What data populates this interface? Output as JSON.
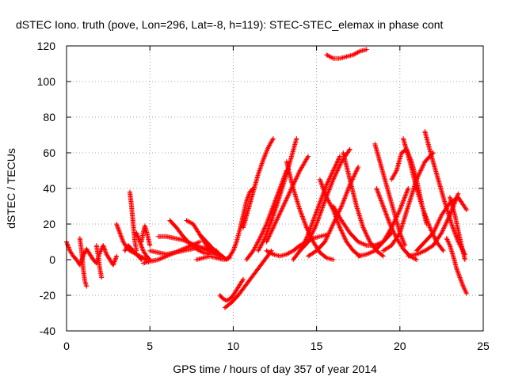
{
  "chart_data": {
    "type": "scatter",
    "title": "dSTEC Iono. truth (pove, Lon=296, Lat=-8, h=119): STEC-STEC_elemax in phase cont",
    "xlabel": "GPS time / hours of day 357 of year 2014",
    "ylabel": "dSTEC  / TECUs",
    "xlim": [
      0,
      25
    ],
    "ylim": [
      -40,
      120
    ],
    "xticks": [
      0,
      5,
      10,
      15,
      20,
      25
    ],
    "yticks": [
      -40,
      -20,
      0,
      20,
      40,
      60,
      80,
      100,
      120
    ],
    "grid": true,
    "marker": "+",
    "color": "#ff0000",
    "series": [
      {
        "x": [
          0.0,
          0.2,
          0.4,
          0.6,
          0.8,
          1.0,
          1.2,
          1.4,
          1.6,
          1.8,
          2.0,
          2.2,
          2.4,
          2.6,
          2.8,
          3.0
        ],
        "y": [
          10,
          5,
          2,
          0,
          -3,
          2,
          6,
          3,
          0,
          -2,
          4,
          8,
          3,
          0,
          -3,
          2
        ]
      },
      {
        "x": [
          0.8,
          0.9,
          1.0,
          1.1,
          1.2
        ],
        "y": [
          12,
          5,
          -5,
          -12,
          -15
        ]
      },
      {
        "x": [
          1.8,
          1.9,
          2.0,
          2.1
        ],
        "y": [
          8,
          2,
          -5,
          -10
        ]
      },
      {
        "x": [
          3.0,
          3.2,
          3.4,
          3.6,
          3.8,
          4.0,
          4.2,
          4.4,
          4.6,
          4.8
        ],
        "y": [
          20,
          15,
          10,
          7,
          5,
          4,
          3,
          2,
          1,
          0
        ]
      },
      {
        "x": [
          3.5,
          3.7,
          3.9,
          4.1,
          4.3,
          4.5
        ],
        "y": [
          5,
          8,
          6,
          4,
          2,
          0
        ]
      },
      {
        "x": [
          3.8,
          3.9,
          4.0,
          4.1,
          4.2
        ],
        "y": [
          38,
          30,
          20,
          10,
          5
        ]
      },
      {
        "x": [
          4.2,
          4.4,
          4.6,
          4.8,
          5.0
        ],
        "y": [
          15,
          10,
          5,
          2,
          0
        ]
      },
      {
        "x": [
          4.5,
          4.6,
          4.7,
          4.8,
          4.9,
          5.0
        ],
        "y": [
          10,
          15,
          19,
          16,
          12,
          8
        ]
      },
      {
        "x": [
          5.0,
          5.5,
          6.0,
          6.5,
          7.0,
          7.5,
          8.0,
          8.5,
          9.0
        ],
        "y": [
          5,
          4,
          3,
          4,
          5,
          6,
          7,
          6,
          5
        ]
      },
      {
        "x": [
          5.5,
          6.0,
          6.5,
          7.0,
          7.5,
          8.0,
          8.5,
          9.0
        ],
        "y": [
          13,
          13,
          12,
          11,
          9,
          7,
          5,
          3
        ]
      },
      {
        "x": [
          6.2,
          6.6,
          7.0,
          7.4,
          7.8,
          8.2,
          8.6
        ],
        "y": [
          22,
          18,
          13,
          9,
          6,
          4,
          3
        ]
      },
      {
        "x": [
          7.2,
          7.6,
          8.0,
          8.4,
          8.8,
          9.2
        ],
        "y": [
          22,
          20,
          14,
          8,
          4,
          2
        ]
      },
      {
        "x": [
          4.6,
          5.0,
          5.5,
          6.0,
          6.5,
          7.0,
          7.5,
          8.0
        ],
        "y": [
          -2,
          -1,
          0,
          2,
          4,
          6,
          8,
          10
        ]
      },
      {
        "x": [
          8.0,
          8.4,
          8.8,
          9.2,
          9.6
        ],
        "y": [
          14,
          10,
          6,
          3,
          0
        ]
      },
      {
        "x": [
          7.8,
          8.2,
          8.6,
          9.0,
          9.4,
          9.8
        ],
        "y": [
          0,
          1,
          2,
          1,
          0,
          1
        ]
      },
      {
        "x": [
          9.2,
          9.4,
          9.6,
          9.8,
          10.0,
          10.2,
          10.4,
          10.6
        ],
        "y": [
          -20,
          -22,
          -23,
          -22,
          -20,
          -17,
          -14,
          -11
        ]
      },
      {
        "x": [
          9.5,
          9.9,
          10.3,
          10.7,
          11.1,
          11.5,
          11.9,
          12.3
        ],
        "y": [
          -27,
          -24,
          -20,
          -15,
          -10,
          -5,
          0,
          5
        ]
      },
      {
        "x": [
          9.6,
          9.8,
          10.0,
          10.2,
          10.4,
          10.6,
          10.8,
          11.0,
          11.2
        ],
        "y": [
          0,
          2,
          5,
          10,
          17,
          25,
          33,
          38,
          40
        ]
      },
      {
        "x": [
          10.6,
          10.9,
          11.2,
          11.5,
          11.8,
          12.1,
          12.4
        ],
        "y": [
          18,
          28,
          38,
          48,
          56,
          63,
          68
        ]
      },
      {
        "x": [
          10.8,
          11.2,
          11.6,
          12.0,
          12.4,
          12.8,
          13.2
        ],
        "y": [
          0,
          5,
          12,
          20,
          30,
          40,
          50
        ]
      },
      {
        "x": [
          11.5,
          11.9,
          12.3,
          12.7,
          13.1,
          13.5,
          13.8
        ],
        "y": [
          5,
          12,
          22,
          33,
          45,
          58,
          68
        ]
      },
      {
        "x": [
          12.0,
          12.5,
          13.0,
          13.5,
          14.0,
          14.5
        ],
        "y": [
          10,
          20,
          30,
          40,
          50,
          58
        ]
      },
      {
        "x": [
          12.0,
          12.4,
          12.8,
          13.2,
          13.6,
          14.0,
          14.4,
          14.8,
          15.2,
          15.6
        ],
        "y": [
          5,
          3,
          2,
          3,
          5,
          8,
          10,
          12,
          13,
          14
        ]
      },
      {
        "x": [
          13.2,
          13.6,
          14.0,
          14.4,
          14.8,
          15.2,
          15.6,
          16.0
        ],
        "y": [
          55,
          40,
          28,
          18,
          10,
          4,
          1,
          0
        ]
      },
      {
        "x": [
          13.6,
          14.0,
          14.4,
          14.8,
          15.2,
          15.6,
          16.0,
          16.4
        ],
        "y": [
          0,
          5,
          12,
          22,
          32,
          42,
          50,
          58
        ]
      },
      {
        "x": [
          14.0,
          14.5,
          15.0,
          15.5,
          16.0,
          16.5,
          17.0
        ],
        "y": [
          5,
          10,
          20,
          33,
          45,
          55,
          62
        ]
      },
      {
        "x": [
          14.5,
          15.0,
          15.5,
          16.0,
          16.5,
          17.0,
          17.5
        ],
        "y": [
          2,
          5,
          10,
          20,
          30,
          42,
          52
        ]
      },
      {
        "x": [
          15.2,
          15.6,
          16.0,
          16.4,
          16.8,
          17.2,
          17.6
        ],
        "y": [
          45,
          35,
          28,
          18,
          10,
          5,
          2
        ]
      },
      {
        "x": [
          15.6,
          16.0,
          16.4,
          16.8,
          17.2,
          17.6,
          18.0
        ],
        "y": [
          115,
          113,
          113,
          114,
          115,
          117,
          118
        ]
      },
      {
        "x": [
          16.6,
          17.0,
          17.4,
          17.8,
          18.2,
          18.6,
          19.0
        ],
        "y": [
          60,
          45,
          30,
          18,
          10,
          5,
          2
        ]
      },
      {
        "x": [
          16.0,
          16.5,
          17.0,
          17.5,
          18.0,
          18.5,
          19.0,
          19.5
        ],
        "y": [
          30,
          22,
          15,
          10,
          8,
          8,
          10,
          15
        ]
      },
      {
        "x": [
          17.5,
          18.0,
          18.5,
          19.0,
          19.5,
          20.0,
          20.5
        ],
        "y": [
          2,
          3,
          5,
          10,
          18,
          28,
          40
        ]
      },
      {
        "x": [
          18.5,
          18.8,
          19.1,
          19.4,
          19.7,
          20.0,
          20.3
        ],
        "y": [
          65,
          55,
          45,
          35,
          25,
          15,
          8
        ]
      },
      {
        "x": [
          18.6,
          19.0,
          19.4,
          19.8,
          20.2,
          20.6,
          21.0
        ],
        "y": [
          40,
          30,
          20,
          12,
          6,
          2,
          0
        ]
      },
      {
        "x": [
          19.5,
          19.8,
          20.1,
          20.4,
          20.7,
          21.0,
          21.3,
          21.6
        ],
        "y": [
          45,
          50,
          60,
          62,
          55,
          45,
          32,
          20
        ]
      },
      {
        "x": [
          19.0,
          19.5,
          20.0,
          20.5,
          21.0,
          21.5,
          22.0
        ],
        "y": [
          5,
          8,
          15,
          30,
          45,
          55,
          60
        ]
      },
      {
        "x": [
          20.2,
          20.6,
          21.0,
          21.4,
          21.8,
          22.2,
          22.6
        ],
        "y": [
          68,
          55,
          40,
          28,
          18,
          10,
          5
        ]
      },
      {
        "x": [
          21.5,
          21.9,
          22.3,
          22.7,
          23.1,
          23.5,
          23.9
        ],
        "y": [
          72,
          58,
          45,
          32,
          20,
          10,
          3
        ]
      },
      {
        "x": [
          20.5,
          21.0,
          21.5,
          22.0,
          22.5,
          23.0,
          23.5
        ],
        "y": [
          2,
          3,
          5,
          8,
          15,
          25,
          37
        ]
      },
      {
        "x": [
          21.0,
          21.5,
          22.0,
          22.5,
          23.0,
          23.5,
          24.0
        ],
        "y": [
          5,
          10,
          15,
          25,
          32,
          35,
          28
        ]
      },
      {
        "x": [
          22.8,
          23.0,
          23.2,
          23.4,
          23.6,
          23.8,
          24.0
        ],
        "y": [
          12,
          8,
          2,
          -5,
          -10,
          -15,
          -19
        ]
      },
      {
        "x": [
          23.0,
          23.3,
          23.6,
          23.9
        ],
        "y": [
          35,
          25,
          12,
          0
        ]
      }
    ]
  }
}
